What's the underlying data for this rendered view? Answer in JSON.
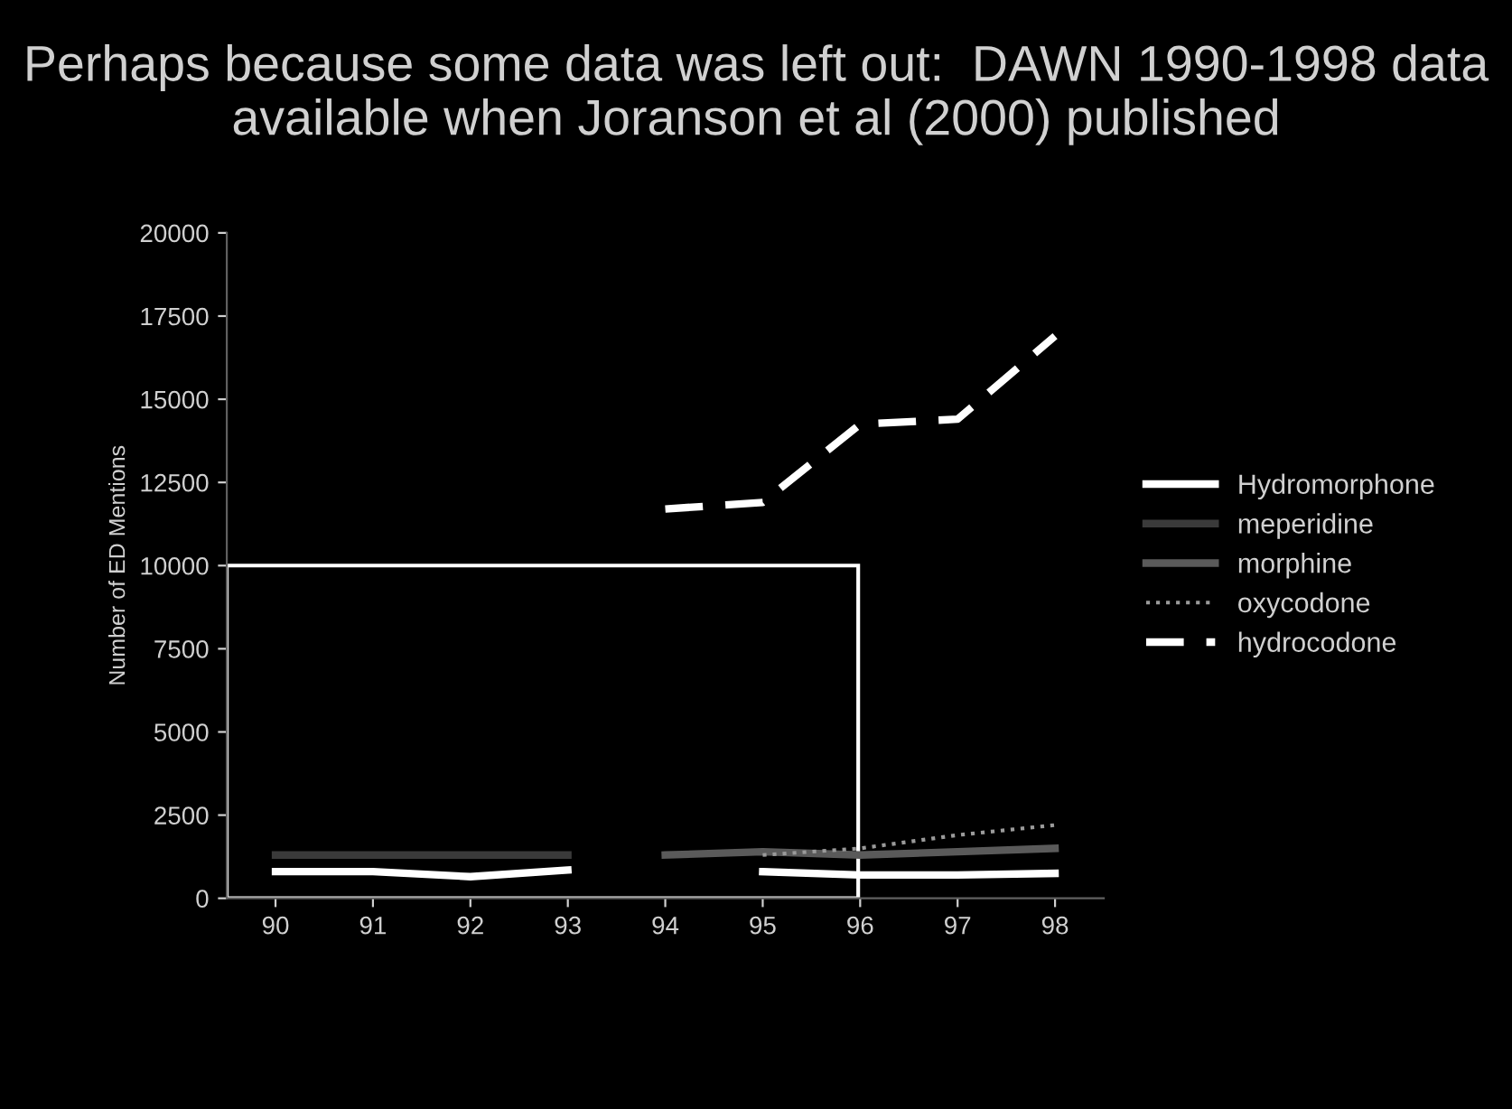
{
  "chart_data": {
    "type": "line",
    "title": "Perhaps because some data was left out:  DAWN 1990-1998 data available when Joranson et al (2000) published",
    "ylabel": "Number of ED Mentions",
    "categories": [
      "90",
      "91",
      "92",
      "93",
      "94",
      "95",
      "96",
      "97",
      "98"
    ],
    "series": [
      {
        "name": "Hydromorphone",
        "color": "#ffffff",
        "line_style": "solid",
        "values": [
          800,
          800,
          650,
          850,
          null,
          800,
          700,
          700,
          750
        ]
      },
      {
        "name": "meperidine",
        "color": "#3a3a3a",
        "line_style": "solid",
        "values": [
          1300,
          1300,
          1300,
          1300,
          null,
          null,
          null,
          null,
          null
        ]
      },
      {
        "name": "morphine",
        "color": "#5a5a5a",
        "line_style": "solid",
        "values": [
          null,
          null,
          null,
          null,
          1300,
          1400,
          1300,
          1400,
          1500
        ]
      },
      {
        "name": "oxycodone",
        "color": "#9a9a9a",
        "line_style": "dotted",
        "values": [
          null,
          null,
          null,
          null,
          null,
          1300,
          1500,
          1900,
          2200
        ]
      },
      {
        "name": "hydrocodone",
        "color": "#ffffff",
        "line_style": "dashed",
        "values": [
          null,
          null,
          null,
          null,
          11700,
          11900,
          14250,
          14400,
          16900
        ]
      }
    ],
    "ylim": [
      0,
      20000
    ],
    "yticks": [
      0,
      2500,
      5000,
      7500,
      10000,
      12500,
      15000,
      17500,
      20000
    ],
    "grid": false,
    "legend": "right",
    "marker": "none"
  }
}
